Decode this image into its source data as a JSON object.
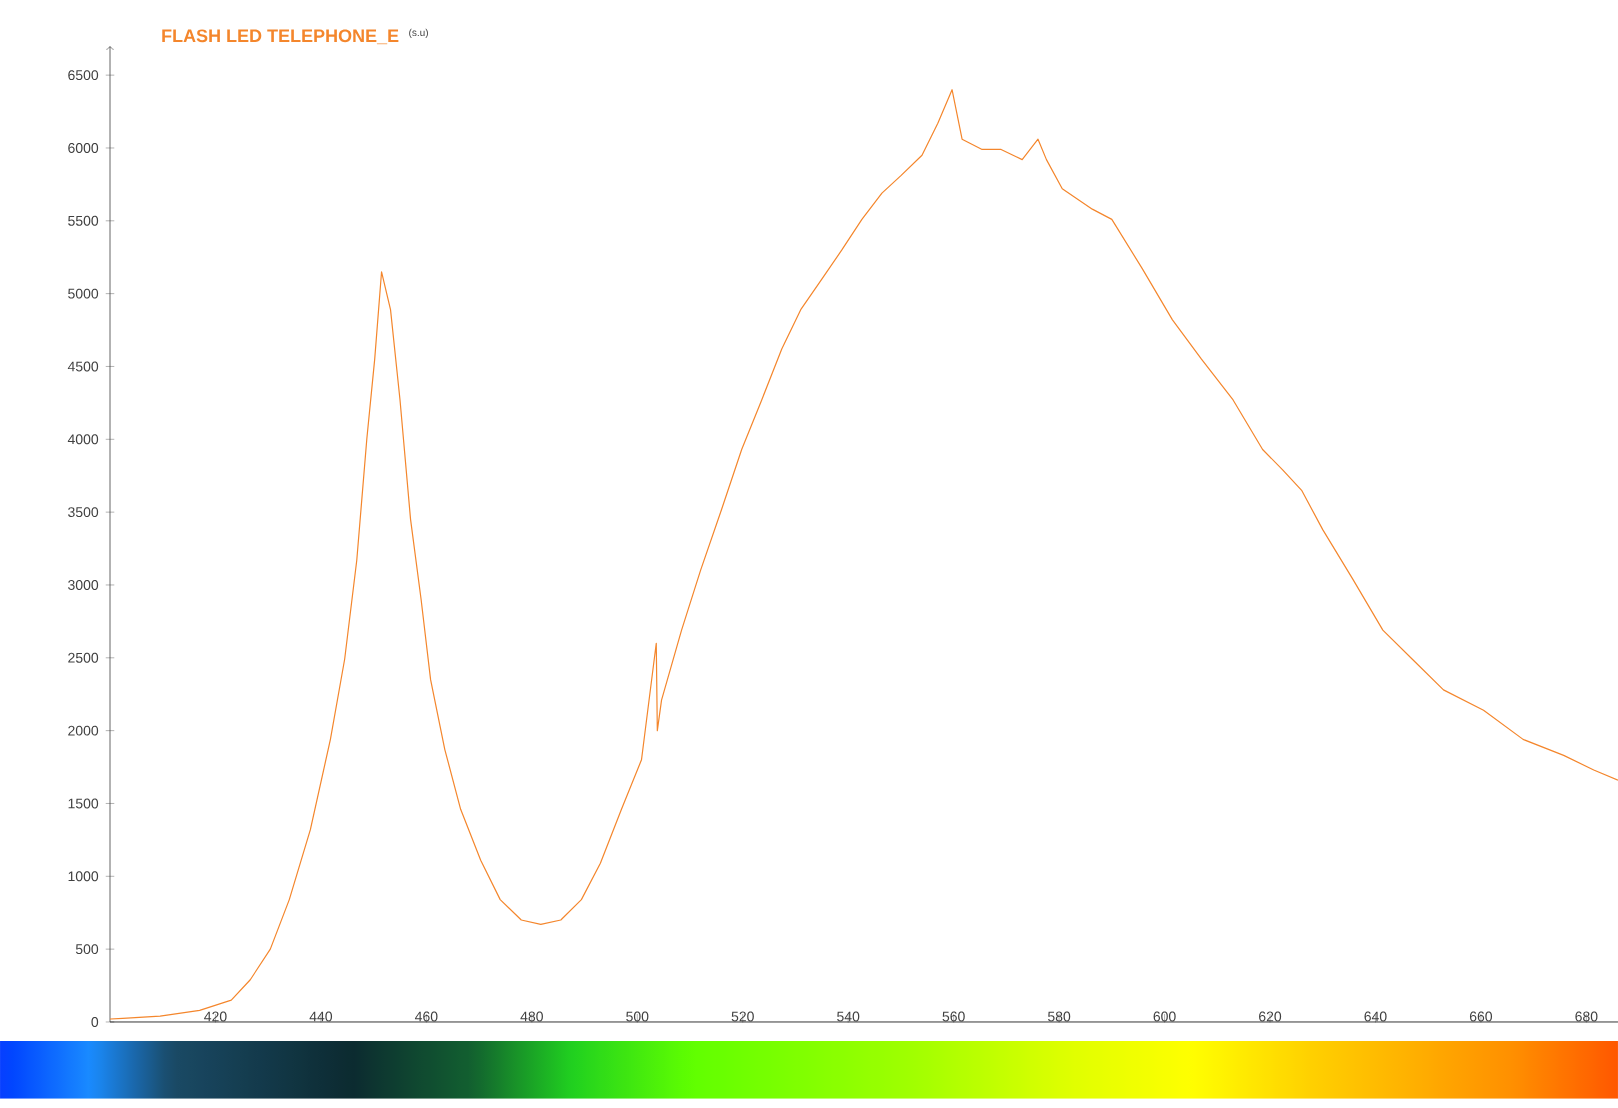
{
  "chart_data": {
    "type": "line",
    "title": "FLASH LED TELEPHONE_E",
    "ylabel": "(s.u)",
    "color": "#f4862c",
    "xlim": [
      400,
      686
    ],
    "ylim": [
      0,
      6700
    ],
    "xticks": [
      420,
      440,
      460,
      480,
      500,
      520,
      540,
      560,
      580,
      600,
      620,
      640,
      660,
      680
    ],
    "yticks": [
      0,
      500,
      1000,
      1500,
      2000,
      2500,
      3000,
      3500,
      4000,
      4500,
      5000,
      5500,
      6000,
      6500
    ],
    "grid": false,
    "marker": "none",
    "line_style": "solid",
    "x": [
      400,
      409.5,
      417,
      423,
      426.6,
      430.4,
      434,
      438,
      441.8,
      444.5,
      446.8,
      448.7,
      450.2,
      451.5,
      453.2,
      455,
      457,
      459,
      460.8,
      463.5,
      466.5,
      470.3,
      474,
      478,
      481.7,
      485.5,
      489.4,
      493,
      497,
      500.8,
      503.6,
      503.8,
      504.6,
      508.4,
      512,
      516,
      519.8,
      523.6,
      527.4,
      531,
      535,
      538.8,
      542.6,
      546.4,
      550,
      554,
      557,
      559.7,
      561.6,
      565.4,
      569,
      573,
      576,
      577.6,
      580.6,
      586.3,
      590,
      595.8,
      601.5,
      607,
      613,
      618.6,
      622.4,
      626,
      630,
      635.7,
      641.4,
      647,
      652.9,
      660.5,
      668,
      675.7,
      681.4,
      686
    ],
    "values": [
      20,
      40,
      80,
      150,
      290,
      500,
      840,
      1320,
      1940,
      2490,
      3170,
      4000,
      4550,
      5150,
      4890,
      4270,
      3450,
      2900,
      2350,
      1870,
      1460,
      1110,
      840,
      700,
      670,
      700,
      840,
      1090,
      1460,
      1800,
      2600,
      2000,
      2210,
      2690,
      3100,
      3520,
      3930,
      4270,
      4620,
      4890,
      5100,
      5300,
      5510,
      5690,
      5810,
      5950,
      6170,
      6400,
      6060,
      5990,
      5990,
      5920,
      6060,
      5920,
      5720,
      5580,
      5510,
      5170,
      4820,
      4550,
      4270,
      3930,
      3790,
      3650,
      3380,
      3040,
      2690,
      2490,
      2280,
      2140,
      1940,
      1830,
      1730,
      1660
    ]
  }
}
